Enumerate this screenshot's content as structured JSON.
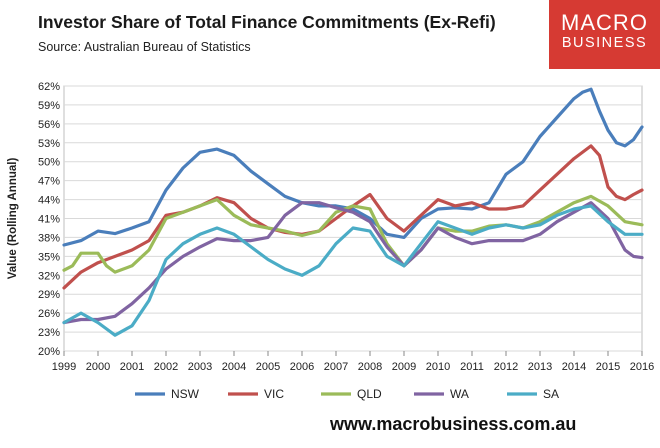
{
  "header": {
    "title": "Investor Share of Total Finance Commitments (Ex-Refi)",
    "source": "Source: Australian Bureau of Statistics"
  },
  "logo": {
    "line1": "MACRO",
    "line2": "BUSINESS",
    "color": "#d63a33"
  },
  "footer": {
    "url": "www.macrobusiness.com.au"
  },
  "chart_data": {
    "type": "line",
    "title": "Investor Share of Total Finance Commitments (Ex-Refi)",
    "ylabel": "Value (Rolling Annual)",
    "xlabel": "",
    "ylim": [
      20,
      62
    ],
    "xlim": [
      1999,
      2016
    ],
    "y_ticks": [
      "20%",
      "23%",
      "26%",
      "29%",
      "32%",
      "35%",
      "38%",
      "41%",
      "44%",
      "47%",
      "50%",
      "53%",
      "56%",
      "59%",
      "62%"
    ],
    "x_ticks": [
      "1999",
      "2000",
      "2001",
      "2002",
      "2003",
      "2004",
      "2005",
      "2006",
      "2007",
      "2008",
      "2009",
      "2010",
      "2011",
      "2012",
      "2013",
      "2014",
      "2015",
      "2016"
    ],
    "grid": true,
    "legend": "bottom",
    "series": [
      {
        "name": "NSW",
        "color": "#4a7ebb",
        "points": [
          [
            1999,
            36.8
          ],
          [
            1999.5,
            37.5
          ],
          [
            2000,
            39
          ],
          [
            2000.5,
            38.6
          ],
          [
            2001,
            39.5
          ],
          [
            2001.5,
            40.5
          ],
          [
            2002,
            45.5
          ],
          [
            2002.5,
            49
          ],
          [
            2003,
            51.5
          ],
          [
            2003.5,
            52
          ],
          [
            2004,
            51
          ],
          [
            2004.5,
            48.5
          ],
          [
            2005,
            46.5
          ],
          [
            2005.5,
            44.5
          ],
          [
            2006,
            43.5
          ],
          [
            2006.5,
            43
          ],
          [
            2007,
            43
          ],
          [
            2007.5,
            42.5
          ],
          [
            2008,
            41
          ],
          [
            2008.5,
            38.5
          ],
          [
            2009,
            38
          ],
          [
            2009.5,
            41
          ],
          [
            2010,
            42.5
          ],
          [
            2010.5,
            42.7
          ],
          [
            2011,
            42.5
          ],
          [
            2011.5,
            43.5
          ],
          [
            2012,
            48
          ],
          [
            2012.5,
            50
          ],
          [
            2013,
            54
          ],
          [
            2013.5,
            57
          ],
          [
            2014,
            60
          ],
          [
            2014.25,
            61
          ],
          [
            2014.5,
            61.5
          ],
          [
            2014.75,
            58
          ],
          [
            2015,
            55
          ],
          [
            2015.25,
            53
          ],
          [
            2015.5,
            52.5
          ],
          [
            2015.75,
            53.5
          ],
          [
            2016,
            55.5
          ]
        ]
      },
      {
        "name": "VIC",
        "color": "#c0504d",
        "points": [
          [
            1999,
            30
          ],
          [
            1999.5,
            32.5
          ],
          [
            2000,
            34
          ],
          [
            2000.5,
            35
          ],
          [
            2001,
            36
          ],
          [
            2001.5,
            37.5
          ],
          [
            2002,
            41.5
          ],
          [
            2002.5,
            42
          ],
          [
            2003,
            43
          ],
          [
            2003.5,
            44.3
          ],
          [
            2004,
            43.5
          ],
          [
            2004.5,
            41
          ],
          [
            2005,
            39.5
          ],
          [
            2005.5,
            38.8
          ],
          [
            2006,
            38.5
          ],
          [
            2006.5,
            39
          ],
          [
            2007,
            41
          ],
          [
            2007.5,
            43
          ],
          [
            2008,
            44.8
          ],
          [
            2008.5,
            41
          ],
          [
            2009,
            39
          ],
          [
            2009.5,
            41.5
          ],
          [
            2010,
            44
          ],
          [
            2010.5,
            43
          ],
          [
            2011,
            43.5
          ],
          [
            2011.5,
            42.5
          ],
          [
            2012,
            42.5
          ],
          [
            2012.5,
            43
          ],
          [
            2013,
            45.5
          ],
          [
            2013.5,
            48
          ],
          [
            2014,
            50.5
          ],
          [
            2014.5,
            52.5
          ],
          [
            2014.75,
            51
          ],
          [
            2015,
            46
          ],
          [
            2015.25,
            44.5
          ],
          [
            2015.5,
            44
          ],
          [
            2015.75,
            44.8
          ],
          [
            2016,
            45.5
          ]
        ]
      },
      {
        "name": "QLD",
        "color": "#9bbb59",
        "points": [
          [
            1999,
            32.8
          ],
          [
            1999.25,
            33.5
          ],
          [
            1999.5,
            35.5
          ],
          [
            2000,
            35.5
          ],
          [
            2000.25,
            33.5
          ],
          [
            2000.5,
            32.5
          ],
          [
            2001,
            33.5
          ],
          [
            2001.5,
            36
          ],
          [
            2002,
            41
          ],
          [
            2002.5,
            42
          ],
          [
            2003,
            43
          ],
          [
            2003.5,
            44
          ],
          [
            2004,
            41.5
          ],
          [
            2004.5,
            40
          ],
          [
            2005,
            39.5
          ],
          [
            2005.5,
            39
          ],
          [
            2006,
            38.3
          ],
          [
            2006.5,
            39
          ],
          [
            2007,
            42
          ],
          [
            2007.5,
            43
          ],
          [
            2008,
            42.5
          ],
          [
            2008.5,
            37
          ],
          [
            2009,
            33.5
          ],
          [
            2009.5,
            36
          ],
          [
            2010,
            39.5
          ],
          [
            2010.5,
            39
          ],
          [
            2011,
            39
          ],
          [
            2011.5,
            39.8
          ],
          [
            2012,
            40
          ],
          [
            2012.5,
            39.5
          ],
          [
            2013,
            40.5
          ],
          [
            2013.5,
            42
          ],
          [
            2014,
            43.5
          ],
          [
            2014.5,
            44.5
          ],
          [
            2015,
            43
          ],
          [
            2015.5,
            40.5
          ],
          [
            2016,
            40
          ]
        ]
      },
      {
        "name": "WA",
        "color": "#8064a2",
        "points": [
          [
            1999,
            24.5
          ],
          [
            1999.5,
            25
          ],
          [
            2000,
            25
          ],
          [
            2000.5,
            25.5
          ],
          [
            2001,
            27.5
          ],
          [
            2001.5,
            30
          ],
          [
            2002,
            33
          ],
          [
            2002.5,
            35
          ],
          [
            2003,
            36.5
          ],
          [
            2003.5,
            37.8
          ],
          [
            2004,
            37.5
          ],
          [
            2004.5,
            37.5
          ],
          [
            2005,
            38
          ],
          [
            2005.5,
            41.5
          ],
          [
            2006,
            43.5
          ],
          [
            2006.5,
            43.5
          ],
          [
            2007,
            42.7
          ],
          [
            2007.5,
            42
          ],
          [
            2008,
            40.5
          ],
          [
            2008.5,
            36.5
          ],
          [
            2009,
            33.5
          ],
          [
            2009.5,
            36
          ],
          [
            2010,
            39.5
          ],
          [
            2010.5,
            38
          ],
          [
            2011,
            37
          ],
          [
            2011.5,
            37.5
          ],
          [
            2012,
            37.5
          ],
          [
            2012.5,
            37.5
          ],
          [
            2013,
            38.5
          ],
          [
            2013.5,
            40.5
          ],
          [
            2014,
            42
          ],
          [
            2014.5,
            43.5
          ],
          [
            2015,
            41
          ],
          [
            2015.5,
            36
          ],
          [
            2015.75,
            35
          ],
          [
            2016,
            34.8
          ]
        ]
      },
      {
        "name": "SA",
        "color": "#4bacc6",
        "points": [
          [
            1999,
            24.5
          ],
          [
            1999.5,
            26
          ],
          [
            2000,
            24.5
          ],
          [
            2000.25,
            23.5
          ],
          [
            2000.5,
            22.5
          ],
          [
            2001,
            24
          ],
          [
            2001.5,
            28
          ],
          [
            2002,
            34.5
          ],
          [
            2002.5,
            37
          ],
          [
            2003,
            38.5
          ],
          [
            2003.5,
            39.5
          ],
          [
            2004,
            38.5
          ],
          [
            2004.5,
            36.5
          ],
          [
            2005,
            34.5
          ],
          [
            2005.5,
            33
          ],
          [
            2006,
            32
          ],
          [
            2006.5,
            33.5
          ],
          [
            2007,
            37
          ],
          [
            2007.5,
            39.5
          ],
          [
            2008,
            39
          ],
          [
            2008.5,
            35
          ],
          [
            2009,
            33.5
          ],
          [
            2009.5,
            37
          ],
          [
            2010,
            40.5
          ],
          [
            2010.5,
            39.5
          ],
          [
            2011,
            38.5
          ],
          [
            2011.5,
            39.5
          ],
          [
            2012,
            40
          ],
          [
            2012.5,
            39.5
          ],
          [
            2013,
            40
          ],
          [
            2013.5,
            41.5
          ],
          [
            2014,
            42.5
          ],
          [
            2014.5,
            43
          ],
          [
            2015,
            40.5
          ],
          [
            2015.5,
            38.5
          ],
          [
            2016,
            38.5
          ]
        ]
      }
    ]
  }
}
